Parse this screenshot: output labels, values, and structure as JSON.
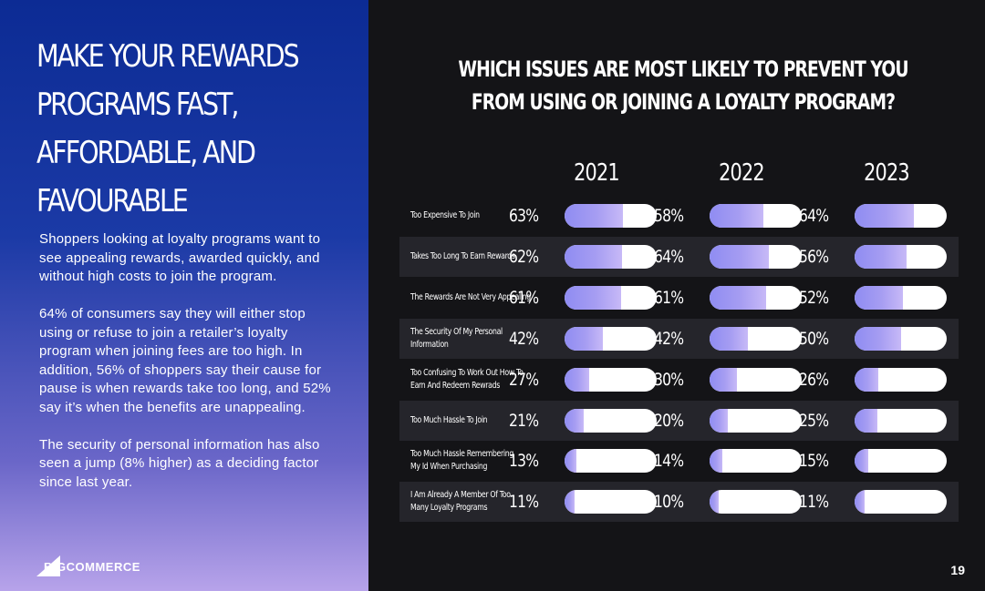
{
  "left": {
    "headline_lines": [
      "MAKE YOUR REWARDS",
      "PROGRAMS FAST,",
      "AFFORDABLE, AND",
      "FAVOURABLE"
    ],
    "paragraphs": [
      "Shoppers looking at loyalty programs want to see appealing rewards, awarded quickly, and without high costs to join the program.",
      "64% of consumers say they will either stop using or refuse to join a retailer’s loyalty program when joining fees are too high. In addition, 56% of shoppers say their cause for pause is when rewards take too long, and 52% say it’s when the benefits are unappealing.",
      "The security of personal information has also seen a jump (8% higher) as a deciding factor since last year."
    ],
    "logo_text": "BIGCOMMERCE",
    "logo_icon": "bigcommerce-logo-icon"
  },
  "page_number": "19",
  "colors": {
    "left_panel_top": "#0c2b94",
    "left_panel_bottom": "#b7a3ea",
    "right_panel_bg": "#141417",
    "row_shade": "#25252b",
    "bar_track": "#ffffff",
    "bar_fill": "#a69df2"
  },
  "chart_data": {
    "type": "bar",
    "title_lines": [
      "WHICH ISSUES ARE MOST LIKELY TO PREVENT YOU",
      "FROM USING OR JOINING A LOYALTY PROGRAM?"
    ],
    "categories": [
      [
        "Too Expensive To Join"
      ],
      [
        "Takes Too Long To Earn Rewards"
      ],
      [
        "The Rewards Are Not Very Appealing"
      ],
      [
        "The Security Of My Personal",
        "Information"
      ],
      [
        "Too Confusing To Work Out How To",
        "Earn And Redeem Rewrads"
      ],
      [
        "Too Much Hassle To Join"
      ],
      [
        "Too Much Hassle Remembering",
        "My Id When Purchasing"
      ],
      [
        "I Am Already A Member Of Too",
        "Many Loyalty Programs"
      ]
    ],
    "series": [
      {
        "name": "2021",
        "values": [
          63,
          62,
          61,
          42,
          27,
          21,
          13,
          11
        ]
      },
      {
        "name": "2022",
        "values": [
          58,
          64,
          61,
          42,
          30,
          20,
          14,
          10
        ]
      },
      {
        "name": "2023",
        "values": [
          64,
          56,
          52,
          50,
          26,
          25,
          15,
          11
        ]
      }
    ],
    "value_suffix": "%",
    "xlim": [
      0,
      100
    ],
    "orientation": "horizontal",
    "grid": false,
    "legend": "column headers above bars"
  }
}
